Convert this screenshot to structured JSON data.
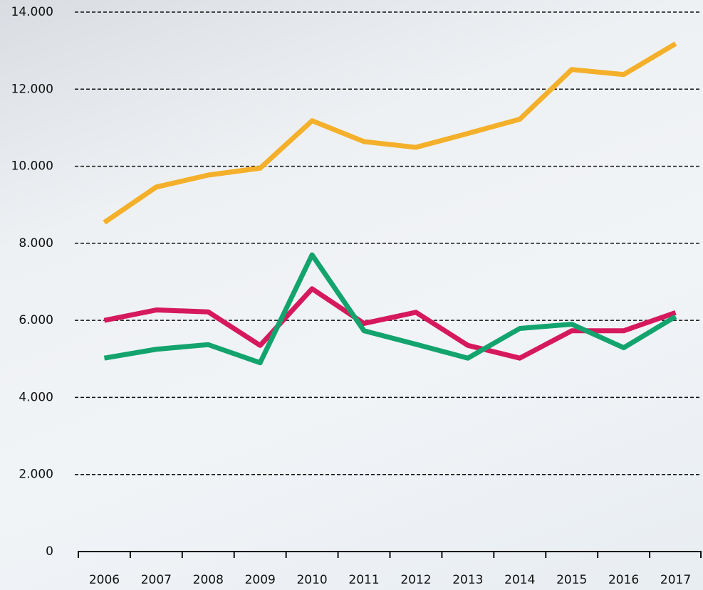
{
  "chart_data": {
    "type": "line",
    "categories": [
      "2006",
      "2007",
      "2008",
      "2009",
      "2010",
      "2011",
      "2012",
      "2013",
      "2014",
      "2015",
      "2016",
      "2017"
    ],
    "series": [
      {
        "color": "#f4b02a",
        "values": [
          8540,
          9460,
          9770,
          9950,
          11180,
          10640,
          10490,
          10850,
          11220,
          12510,
          12380,
          13180
        ]
      },
      {
        "color": "#d6195d",
        "values": [
          6000,
          6270,
          6220,
          5350,
          6820,
          5920,
          6210,
          5350,
          5020,
          5730,
          5730,
          6200
        ]
      },
      {
        "color": "#13a46e",
        "values": [
          5020,
          5250,
          5370,
          4900,
          7700,
          5730,
          5380,
          5020,
          5790,
          5900,
          5290,
          6100
        ]
      }
    ],
    "ylim": [
      0,
      14000
    ],
    "yticks": [
      0,
      {
        "value": 2000,
        "label": "2.000"
      },
      {
        "value": 4000,
        "label": "4.000"
      },
      {
        "value": 6000,
        "label": "6.000"
      },
      {
        "value": 8000,
        "label": "8.000"
      },
      {
        "value": 10000,
        "label": "10.000"
      },
      {
        "value": 12000,
        "label": "12.000"
      },
      {
        "value": 14000,
        "label": "14.000"
      }
    ],
    "grid": true
  }
}
